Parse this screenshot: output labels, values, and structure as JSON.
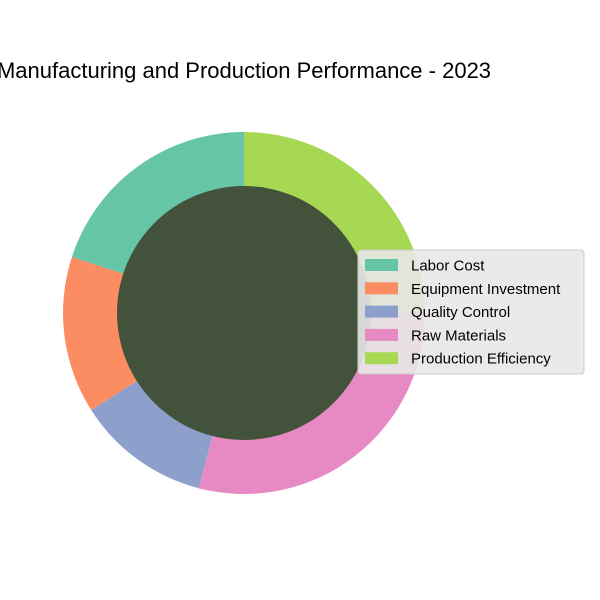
{
  "chart_data": {
    "type": "pie",
    "variant": "donut",
    "title": "Manufacturing and Production Performance - 2023",
    "categories": [
      "Labor Cost",
      "Equipment Investment",
      "Quality Control",
      "Raw Materials",
      "Production Efficiency"
    ],
    "values": [
      20,
      14,
      12,
      29,
      25
    ],
    "colors": [
      "#66c5a6",
      "#fc8d62",
      "#8da0cb",
      "#e78ac3",
      "#a6d854"
    ],
    "center_color": "#43533b",
    "legend_placement": "center-right",
    "start_angle_deg": 90,
    "direction": "counterclockwise"
  }
}
